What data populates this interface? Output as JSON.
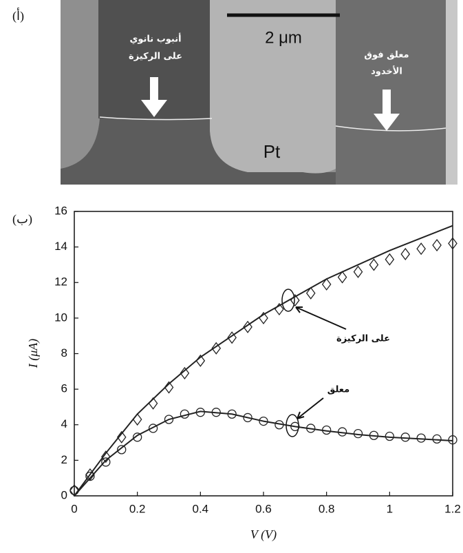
{
  "panels": {
    "a": "(أ)",
    "b": "(ب)"
  },
  "image": {
    "substrate_label": [
      "أنبوب نانوي",
      "على الركيزة"
    ],
    "suspended_label": [
      "معلق فوق",
      "الأخدود"
    ],
    "scale_bar": "2 μm",
    "electrode": "Pt"
  },
  "chart_data": {
    "type": "line",
    "xlabel": "V (V)",
    "ylabel": "I (μA)",
    "xlim": [
      0,
      1.2
    ],
    "xticks": [
      0,
      0.2,
      0.4,
      0.6,
      0.8,
      1,
      1.2
    ],
    "ylim": [
      0,
      16
    ],
    "yticks": [
      0,
      2,
      4,
      6,
      8,
      10,
      12,
      14,
      16
    ],
    "color": "#222",
    "series": [
      {
        "name": "على الركيزة",
        "marker": "diamond",
        "x": [
          0,
          0.05,
          0.1,
          0.15,
          0.2,
          0.25,
          0.3,
          0.35,
          0.4,
          0.45,
          0.5,
          0.55,
          0.6,
          0.65,
          0.7,
          0.75,
          0.8,
          0.85,
          0.9,
          0.95,
          1.0,
          1.05,
          1.1,
          1.15,
          1.2
        ],
        "values": [
          0.3,
          1.2,
          2.2,
          3.3,
          4.3,
          5.2,
          6.1,
          6.9,
          7.6,
          8.3,
          8.9,
          9.5,
          10.0,
          10.5,
          11.0,
          11.4,
          11.9,
          12.3,
          12.6,
          13.0,
          13.3,
          13.6,
          13.9,
          14.1,
          14.2
        ]
      },
      {
        "marker": "line",
        "x": [
          0,
          0.1,
          0.2,
          0.3,
          0.4,
          0.5,
          0.6,
          0.7,
          0.8,
          0.9,
          1.0,
          1.1,
          1.2
        ],
        "values": [
          0,
          2.4,
          4.6,
          6.3,
          7.8,
          9.0,
          10.2,
          11.2,
          12.2,
          13.0,
          13.8,
          14.5,
          15.2
        ]
      },
      {
        "name": "معلق",
        "marker": "circle",
        "x": [
          0,
          0.05,
          0.1,
          0.15,
          0.2,
          0.25,
          0.3,
          0.35,
          0.4,
          0.45,
          0.5,
          0.55,
          0.6,
          0.65,
          0.7,
          0.75,
          0.8,
          0.85,
          0.9,
          0.95,
          1.0,
          1.05,
          1.1,
          1.15,
          1.2
        ],
        "values": [
          0.3,
          1.1,
          1.9,
          2.6,
          3.3,
          3.8,
          4.3,
          4.6,
          4.7,
          4.7,
          4.6,
          4.4,
          4.2,
          4.0,
          3.9,
          3.8,
          3.7,
          3.6,
          3.5,
          3.4,
          3.35,
          3.3,
          3.25,
          3.2,
          3.15
        ]
      },
      {
        "marker": "line",
        "x": [
          0,
          0.1,
          0.2,
          0.3,
          0.4,
          0.5,
          0.6,
          0.7,
          0.8,
          0.9,
          1.0,
          1.1,
          1.2
        ],
        "values": [
          0,
          2.0,
          3.4,
          4.3,
          4.75,
          4.6,
          4.2,
          3.9,
          3.65,
          3.45,
          3.3,
          3.2,
          3.1
        ]
      }
    ]
  }
}
